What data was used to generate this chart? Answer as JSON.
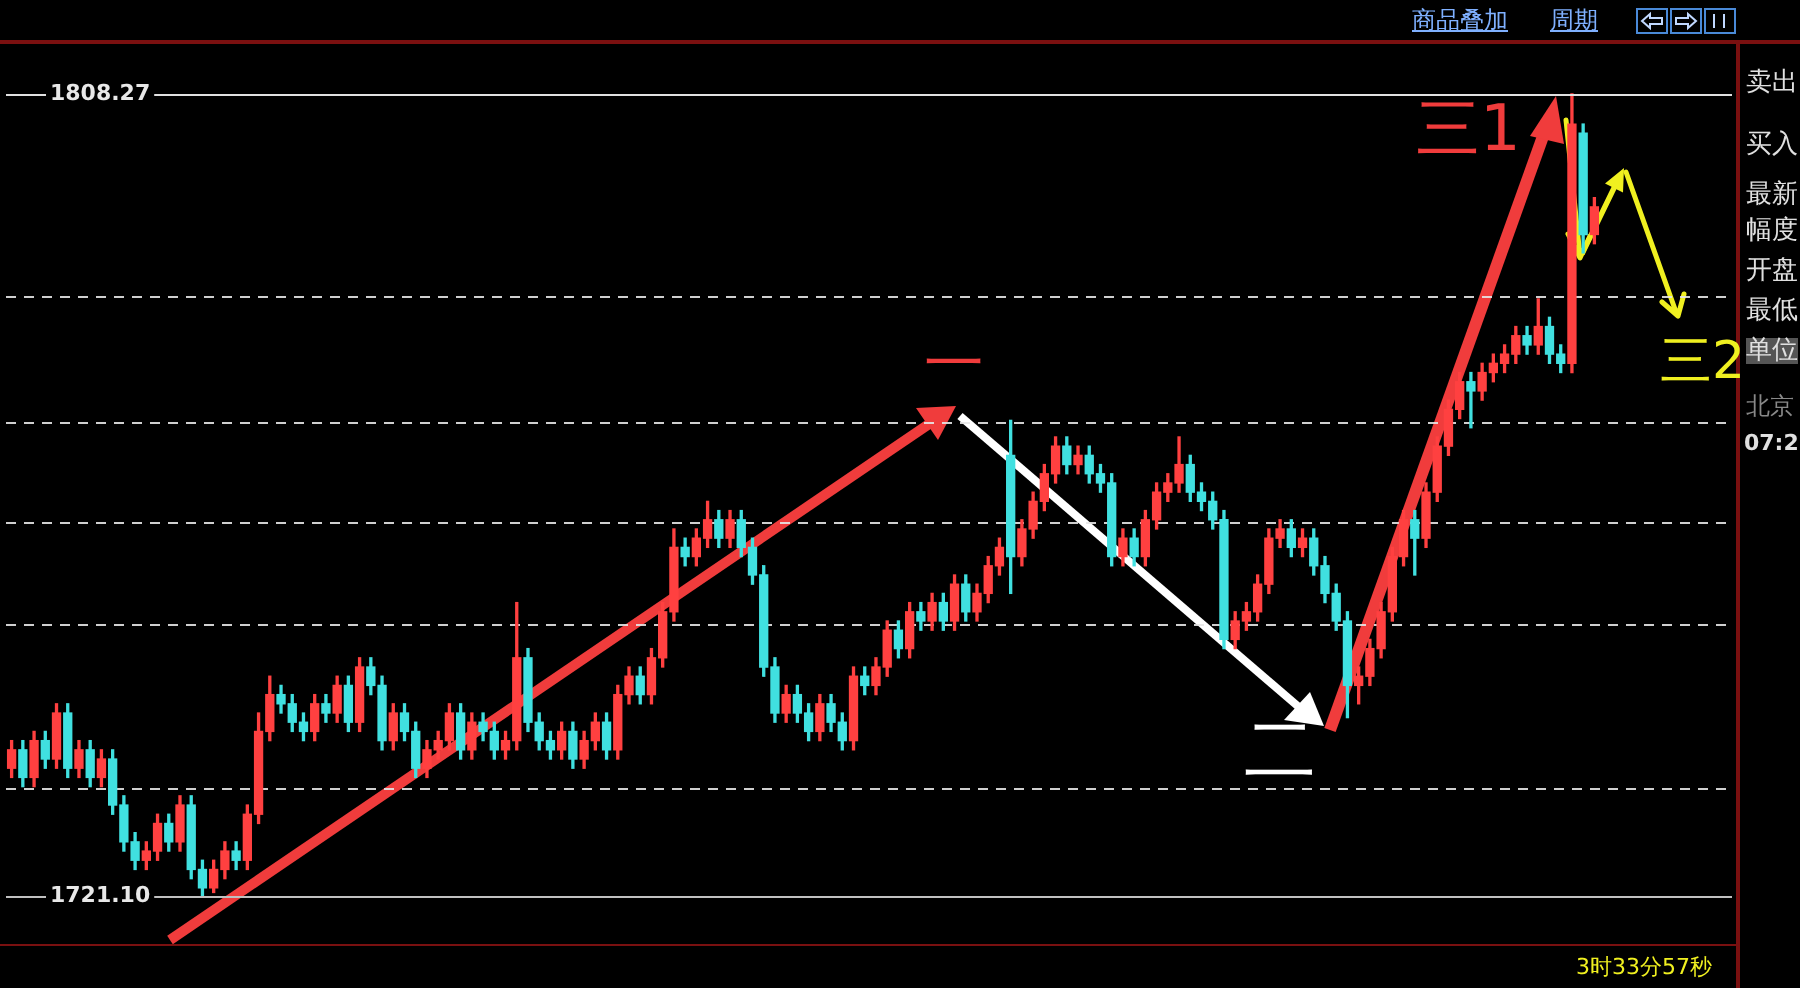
{
  "chart_data": {
    "type": "candlestick",
    "categories": [
      null,
      null,
      null,
      null,
      null,
      null,
      null,
      null,
      null,
      null,
      null,
      null,
      null,
      null,
      null,
      null,
      null,
      null,
      null,
      null,
      null,
      null,
      null,
      null,
      null,
      null,
      null,
      null,
      null,
      null,
      null,
      null,
      null,
      null,
      null,
      null,
      null,
      null,
      null,
      null,
      null,
      null,
      null,
      null,
      null,
      null,
      null,
      null,
      null,
      null,
      null,
      null,
      null,
      null,
      null,
      null,
      null,
      null,
      null,
      null,
      null,
      null,
      null,
      null,
      null,
      null,
      null,
      null,
      null,
      null,
      null,
      null,
      null,
      null,
      null,
      null,
      null,
      null,
      null,
      null,
      null,
      null,
      null,
      null,
      null,
      null,
      null,
      null,
      null,
      null,
      null,
      null,
      null,
      null,
      null,
      null,
      null,
      null,
      null,
      null,
      null,
      null,
      null,
      null,
      null,
      null,
      null,
      null,
      null,
      null,
      null,
      null,
      null,
      null,
      null,
      null,
      null,
      null,
      null,
      null,
      null,
      null,
      null,
      null,
      null,
      null,
      null,
      null,
      null,
      null,
      null,
      null,
      null,
      null,
      null,
      null,
      null,
      null,
      null,
      null,
      null,
      null
    ],
    "ohlc": [
      [
        1735,
        1738,
        1734,
        1737
      ],
      [
        1737,
        1738,
        1733,
        1734
      ],
      [
        1734,
        1739,
        1733,
        1738
      ],
      [
        1738,
        1739,
        1735,
        1736
      ],
      [
        1736,
        1742,
        1735,
        1741
      ],
      [
        1741,
        1742,
        1734,
        1735
      ],
      [
        1735,
        1738,
        1734,
        1737
      ],
      [
        1737,
        1738,
        1733,
        1734
      ],
      [
        1734,
        1737,
        1733,
        1736
      ],
      [
        1736,
        1737,
        1730,
        1731
      ],
      [
        1731,
        1732,
        1726,
        1727
      ],
      [
        1727,
        1728,
        1724,
        1725
      ],
      [
        1725,
        1727,
        1724,
        1726
      ],
      [
        1726,
        1730,
        1725,
        1729
      ],
      [
        1729,
        1730,
        1726,
        1727
      ],
      [
        1727,
        1732,
        1726,
        1731
      ],
      [
        1731,
        1732,
        1723,
        1724
      ],
      [
        1724,
        1725,
        1721.1,
        1722
      ],
      [
        1722,
        1725,
        1721.5,
        1724
      ],
      [
        1724,
        1727,
        1723,
        1726
      ],
      [
        1726,
        1727,
        1724,
        1725
      ],
      [
        1725,
        1731,
        1724,
        1730
      ],
      [
        1730,
        1741,
        1729,
        1739
      ],
      [
        1739,
        1745,
        1738,
        1743
      ],
      [
        1743,
        1744,
        1741,
        1742
      ],
      [
        1742,
        1743,
        1739,
        1740
      ],
      [
        1740,
        1741,
        1738,
        1739
      ],
      [
        1739,
        1743,
        1738,
        1742
      ],
      [
        1742,
        1743,
        1740,
        1741
      ],
      [
        1741,
        1745,
        1740,
        1744
      ],
      [
        1744,
        1745,
        1739,
        1740
      ],
      [
        1740,
        1747,
        1739,
        1746
      ],
      [
        1746,
        1747,
        1743,
        1744
      ],
      [
        1744,
        1745,
        1737,
        1738
      ],
      [
        1738,
        1742,
        1737,
        1741
      ],
      [
        1741,
        1742,
        1738,
        1739
      ],
      [
        1739,
        1740,
        1734,
        1735
      ],
      [
        1735,
        1738,
        1734,
        1737
      ],
      [
        1737,
        1739,
        1736,
        1738
      ],
      [
        1738,
        1742,
        1737,
        1741
      ],
      [
        1741,
        1742,
        1736,
        1737
      ],
      [
        1737,
        1741,
        1736,
        1740
      ],
      [
        1740,
        1741,
        1738,
        1739
      ],
      [
        1739,
        1740,
        1736,
        1737
      ],
      [
        1737,
        1739,
        1736,
        1738
      ],
      [
        1738,
        1753,
        1737,
        1747
      ],
      [
        1747,
        1748,
        1739,
        1740
      ],
      [
        1740,
        1741,
        1737,
        1738
      ],
      [
        1738,
        1739,
        1736,
        1737
      ],
      [
        1737,
        1740,
        1736,
        1739
      ],
      [
        1739,
        1740,
        1735,
        1736
      ],
      [
        1736,
        1739,
        1735,
        1738
      ],
      [
        1738,
        1741,
        1737,
        1740
      ],
      [
        1740,
        1741,
        1736,
        1737
      ],
      [
        1737,
        1744,
        1736,
        1743
      ],
      [
        1743,
        1746,
        1742,
        1745
      ],
      [
        1745,
        1746,
        1742,
        1743
      ],
      [
        1743,
        1748,
        1742,
        1747
      ],
      [
        1747,
        1753,
        1746,
        1752
      ],
      [
        1752,
        1761,
        1751,
        1759
      ],
      [
        1759,
        1760,
        1757,
        1758
      ],
      [
        1758,
        1761,
        1757,
        1760
      ],
      [
        1760,
        1764,
        1759,
        1762
      ],
      [
        1762,
        1763,
        1759,
        1760
      ],
      [
        1760,
        1763,
        1759,
        1762
      ],
      [
        1762,
        1763,
        1758,
        1759
      ],
      [
        1759,
        1760,
        1755,
        1756
      ],
      [
        1756,
        1757,
        1745,
        1746
      ],
      [
        1746,
        1747,
        1740,
        1741
      ],
      [
        1741,
        1744,
        1740,
        1743
      ],
      [
        1743,
        1744,
        1740,
        1741
      ],
      [
        1741,
        1742,
        1738,
        1739
      ],
      [
        1739,
        1743,
        1738,
        1742
      ],
      [
        1742,
        1743,
        1739,
        1740
      ],
      [
        1740,
        1741,
        1737,
        1738
      ],
      [
        1738,
        1746,
        1737,
        1745
      ],
      [
        1745,
        1746,
        1743,
        1744
      ],
      [
        1744,
        1747,
        1743,
        1746
      ],
      [
        1746,
        1751,
        1745,
        1750
      ],
      [
        1750,
        1751,
        1747,
        1748
      ],
      [
        1748,
        1753,
        1747,
        1752
      ],
      [
        1752,
        1753,
        1750,
        1751
      ],
      [
        1751,
        1754,
        1750,
        1753
      ],
      [
        1753,
        1754,
        1750,
        1751
      ],
      [
        1751,
        1756,
        1750,
        1755
      ],
      [
        1755,
        1756,
        1751,
        1752
      ],
      [
        1752,
        1755,
        1751,
        1754
      ],
      [
        1754,
        1758,
        1753,
        1757
      ],
      [
        1757,
        1760,
        1756,
        1759
      ],
      [
        1769,
        1772.8,
        1754,
        1758
      ],
      [
        1758,
        1762,
        1757,
        1761
      ],
      [
        1761,
        1765,
        1760,
        1764
      ],
      [
        1764,
        1768,
        1763,
        1767
      ],
      [
        1767,
        1771,
        1766,
        1770
      ],
      [
        1770,
        1771,
        1767,
        1768
      ],
      [
        1768,
        1770,
        1767,
        1769
      ],
      [
        1769,
        1770,
        1766,
        1767
      ],
      [
        1767,
        1768,
        1765,
        1766
      ],
      [
        1766,
        1767,
        1757,
        1758
      ],
      [
        1758,
        1761,
        1757,
        1760
      ],
      [
        1760,
        1761,
        1757,
        1758
      ],
      [
        1758,
        1763,
        1757,
        1762
      ],
      [
        1762,
        1766,
        1761,
        1765
      ],
      [
        1765,
        1767,
        1764,
        1766
      ],
      [
        1766,
        1771,
        1765,
        1768
      ],
      [
        1768,
        1769,
        1764,
        1765
      ],
      [
        1765,
        1766,
        1763,
        1764
      ],
      [
        1764,
        1765,
        1761,
        1762
      ],
      [
        1762,
        1763,
        1748,
        1749
      ],
      [
        1749,
        1752,
        1748,
        1751
      ],
      [
        1751,
        1753,
        1750,
        1752
      ],
      [
        1752,
        1756,
        1751,
        1755
      ],
      [
        1755,
        1761,
        1754,
        1760
      ],
      [
        1760,
        1762,
        1759,
        1761
      ],
      [
        1761,
        1762,
        1758,
        1759
      ],
      [
        1759,
        1761,
        1758,
        1760
      ],
      [
        1760,
        1761,
        1756,
        1757
      ],
      [
        1757,
        1758,
        1753,
        1754
      ],
      [
        1754,
        1755,
        1750,
        1751
      ],
      [
        1751,
        1752,
        1740.5,
        1744
      ],
      [
        1744,
        1746,
        1742,
        1745
      ],
      [
        1745,
        1749,
        1744,
        1748
      ],
      [
        1748,
        1753,
        1747,
        1752
      ],
      [
        1752,
        1759,
        1751,
        1758
      ],
      [
        1758,
        1763,
        1757,
        1762
      ],
      [
        1762,
        1763,
        1756,
        1760
      ],
      [
        1760,
        1766,
        1759,
        1765
      ],
      [
        1765,
        1771,
        1764,
        1770
      ],
      [
        1770,
        1775,
        1769,
        1774
      ],
      [
        1774,
        1778,
        1773,
        1777
      ],
      [
        1777,
        1778,
        1772,
        1776
      ],
      [
        1776,
        1779,
        1775,
        1778
      ],
      [
        1778,
        1780,
        1777,
        1779
      ],
      [
        1779,
        1781,
        1778,
        1780
      ],
      [
        1780,
        1783,
        1779,
        1782
      ],
      [
        1782,
        1783,
        1780,
        1781
      ],
      [
        1781,
        1786,
        1780,
        1783
      ],
      [
        1783,
        1784,
        1779,
        1780
      ],
      [
        1780,
        1781,
        1778,
        1779
      ],
      [
        1779,
        1808.27,
        1778,
        1805
      ],
      [
        1804,
        1805,
        1791,
        1793
      ],
      [
        1793,
        1797,
        1792,
        1796
      ]
    ],
    "ylim": [
      1715.9,
      1813.7
    ],
    "yticks": [
      {
        "value": 1721.1,
        "label": "1721.10"
      },
      {
        "value": 1732.8,
        "label": null
      },
      {
        "value": 1750.7,
        "label": null
      },
      {
        "value": 1761.8,
        "label": null
      },
      {
        "value": 1772.6,
        "label": null
      },
      {
        "value": 1786.3,
        "label": null
      },
      {
        "value": 1808.27,
        "label": "1808.27"
      }
    ],
    "grid": "y",
    "tick_labels": "y",
    "ref_lines": [
      {
        "axis": "y",
        "value": 1808.27,
        "color": "#e0e0e0"
      },
      {
        "axis": "y",
        "value": 1721.1,
        "color": "#c0c0c0"
      }
    ],
    "annotations": [
      "一",
      "二",
      "三1",
      "三2",
      "商品叠加",
      "周期",
      "卖出",
      "买入",
      "最新",
      "幅度",
      "开盘",
      "最低",
      "单位",
      "北京",
      "07:2",
      "3时33分57秒"
    ]
  }
}
